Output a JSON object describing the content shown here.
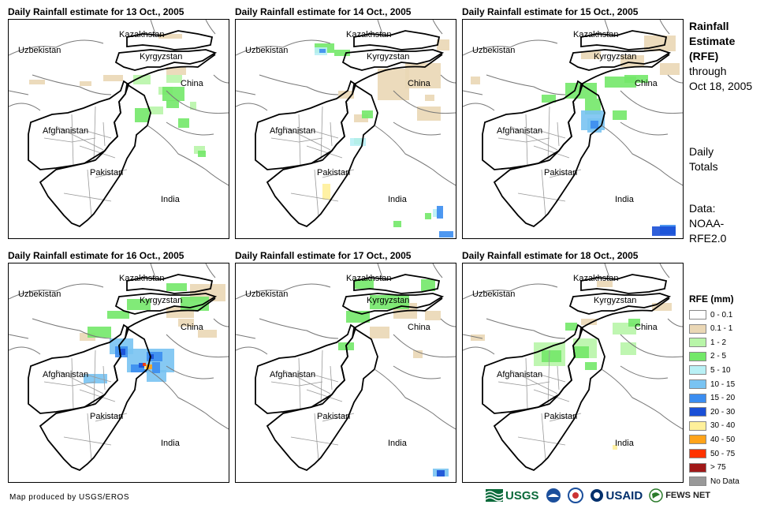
{
  "panels": [
    {
      "title": "Daily Rainfall estimate for 13 Oct., 2005"
    },
    {
      "title": "Daily Rainfall estimate for 14 Oct., 2005"
    },
    {
      "title": "Daily Rainfall estimate for 15 Oct., 2005"
    },
    {
      "title": "Daily Rainfall estimate for 16 Oct., 2005"
    },
    {
      "title": "Daily Rainfall estimate for 17 Oct., 2005"
    },
    {
      "title": "Daily Rainfall estimate for 18 Oct., 2005"
    }
  ],
  "map_labels": {
    "kazakhstan": "Kazakhstan",
    "uzbekistan": "Uzbekistan",
    "kyrgyzstan": "Kyrgyzstan",
    "china": "China",
    "afghanistan": "Afghanistan",
    "pakistan": "Pakistan",
    "india": "India"
  },
  "side": {
    "line1": "Rainfall",
    "line2": "Estimate",
    "line3": "(RFE)",
    "line4": "through",
    "line5": "Oct 18, 2005",
    "daily1": "Daily",
    "daily2": "Totals",
    "data1": "Data:",
    "data2": "NOAA-",
    "data3": "RFE2.0"
  },
  "legend": {
    "title": "RFE (mm)",
    "items": [
      {
        "label": "0 - 0.1",
        "color": "#ffffff"
      },
      {
        "label": "0.1 - 1",
        "color": "#ead7b5"
      },
      {
        "label": "1 - 2",
        "color": "#b8f5a8"
      },
      {
        "label": "2 - 5",
        "color": "#73e869"
      },
      {
        "label": "5 - 10",
        "color": "#b9f0f5"
      },
      {
        "label": "10 - 15",
        "color": "#79c3f2"
      },
      {
        "label": "15 - 20",
        "color": "#3b8df0"
      },
      {
        "label": "20 - 30",
        "color": "#1a4fd6"
      },
      {
        "label": "30 - 40",
        "color": "#fff09a"
      },
      {
        "label": "40 - 50",
        "color": "#ffa31a"
      },
      {
        "label": "50 - 75",
        "color": "#ff3300"
      },
      {
        "label": "> 75",
        "color": "#a01818"
      },
      {
        "label": "No Data",
        "color": "#999999"
      }
    ]
  },
  "credit": "Map produced by USGS/EROS",
  "logos": {
    "usgs": "USGS",
    "usaid": "USAID",
    "fews": "FEWS NET"
  }
}
